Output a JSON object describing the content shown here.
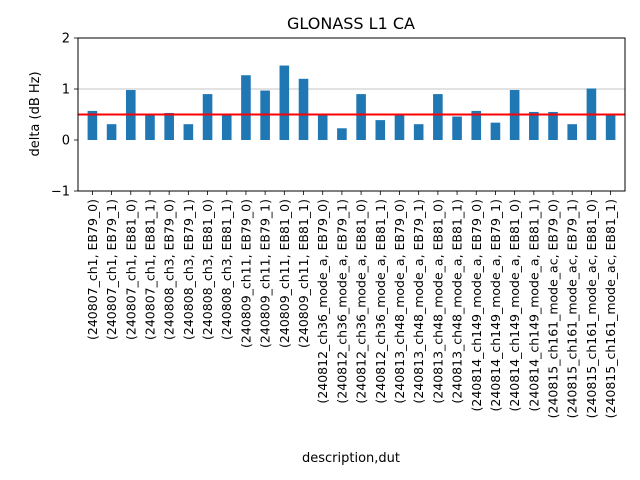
{
  "chart_data": {
    "type": "bar",
    "title": "GLONASS L1 CA",
    "xlabel": "description,dut",
    "ylabel": "delta (dB Hz)",
    "ylim": [
      -1,
      2
    ],
    "yticks": [
      -1,
      0,
      1,
      2
    ],
    "ytick_labels": [
      "−1",
      "0",
      "1",
      "2"
    ],
    "grid": "horizontal gridline at 1",
    "reference_line": {
      "y": 0.5,
      "color": "#ff0000"
    },
    "bar_color": "#1f77b4",
    "categories": [
      "(240807_ch1, EB79_0)",
      "(240807_ch1, EB79_1)",
      "(240807_ch1, EB81_0)",
      "(240807_ch1, EB81_1)",
      "(240808_ch3, EB79_0)",
      "(240808_ch3, EB79_1)",
      "(240808_ch3, EB81_0)",
      "(240808_ch3, EB81_1)",
      "(240809_ch11, EB79_0)",
      "(240809_ch11, EB79_1)",
      "(240809_ch11, EB81_0)",
      "(240809_ch11, EB81_1)",
      "(240812_ch36_mode_a, EB79_0)",
      "(240812_ch36_mode_a, EB79_1)",
      "(240812_ch36_mode_a, EB81_0)",
      "(240812_ch36_mode_a, EB81_1)",
      "(240813_ch48_mode_a, EB79_0)",
      "(240813_ch48_mode_a, EB79_1)",
      "(240813_ch48_mode_a, EB81_0)",
      "(240813_ch48_mode_a, EB81_1)",
      "(240814_ch149_mode_a, EB79_0)",
      "(240814_ch149_mode_a, EB79_1)",
      "(240814_ch149_mode_a, EB81_0)",
      "(240814_ch149_mode_a, EB81_1)",
      "(240815_ch161_mode_ac, EB79_0)",
      "(240815_ch161_mode_ac, EB79_1)",
      "(240815_ch161_mode_ac, EB81_0)",
      "(240815_ch161_mode_ac, EB81_1)"
    ],
    "values": [
      0.57,
      0.31,
      0.98,
      0.5,
      0.53,
      0.31,
      0.9,
      0.5,
      1.27,
      0.97,
      1.46,
      1.2,
      0.5,
      0.23,
      0.9,
      0.39,
      0.5,
      0.31,
      0.9,
      0.46,
      0.57,
      0.34,
      0.98,
      0.55,
      0.55,
      0.31,
      1.01,
      0.51
    ]
  }
}
